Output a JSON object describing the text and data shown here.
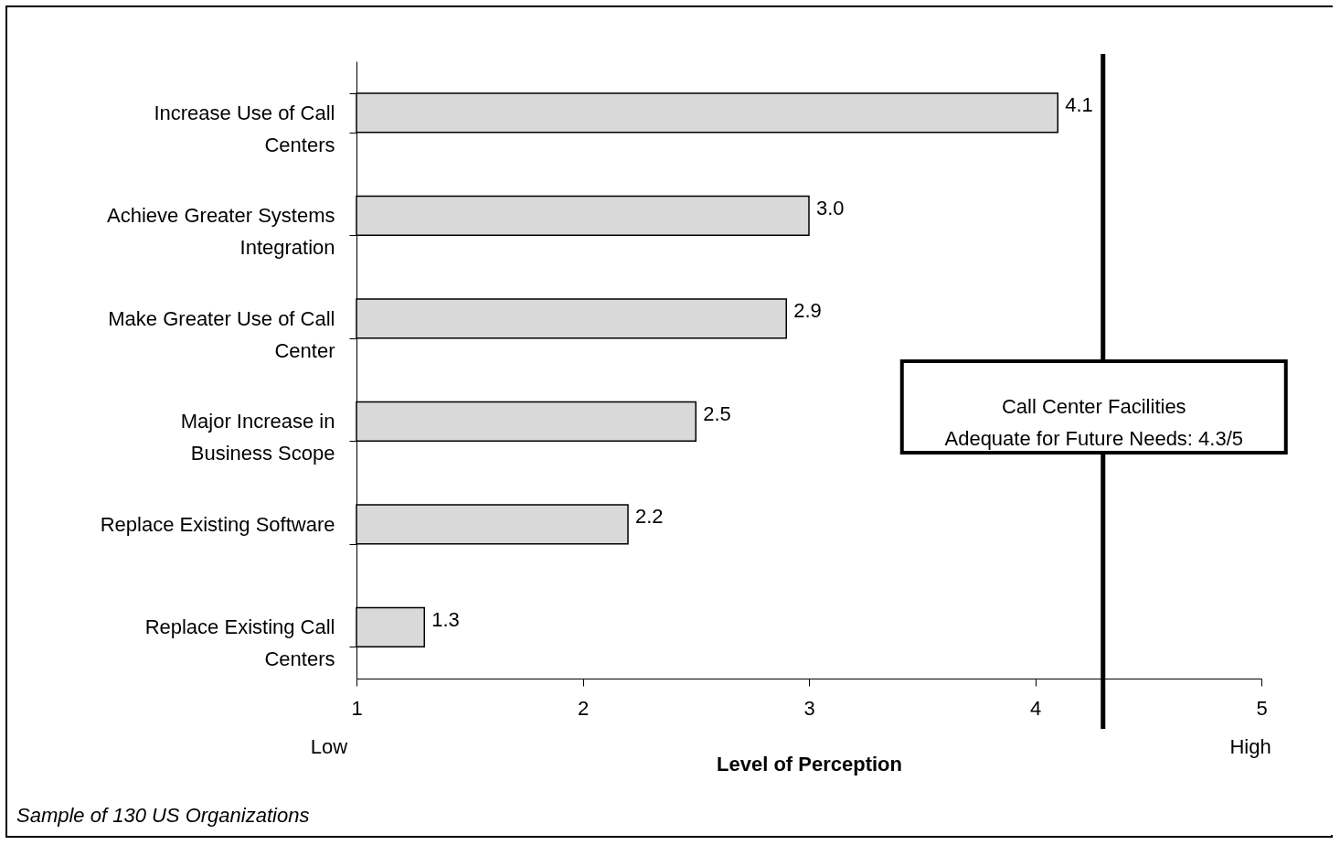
{
  "chart_data": {
    "type": "bar",
    "orientation": "horizontal",
    "xlabel": "Level of Perception",
    "categories": [
      "Increase Use of Call Centers",
      "Achieve Greater Systems Integration",
      "Make Greater Use of Call Center",
      "Major Increase in Business Scope",
      "Replace Existing Software",
      "Replace Existing Call Centers"
    ],
    "values": [
      4.1,
      3.0,
      2.9,
      2.5,
      2.2,
      1.3
    ],
    "value_labels": [
      "4.1",
      "3.0",
      "2.9",
      "2.5",
      "2.2",
      "1.3"
    ],
    "color": "#d9d9d9",
    "xlim": [
      1,
      5
    ],
    "xticks": [
      1,
      2,
      3,
      4,
      5
    ],
    "ref_lines": [
      {
        "axis": "x",
        "value": 4.3,
        "label": "Call Center Facilities\nAdequate for Future Needs: 4.3/5",
        "color": "#000000"
      }
    ],
    "annotations": [
      "Low",
      "High",
      "Sample of 130 US Organizations"
    ],
    "grid": false
  }
}
